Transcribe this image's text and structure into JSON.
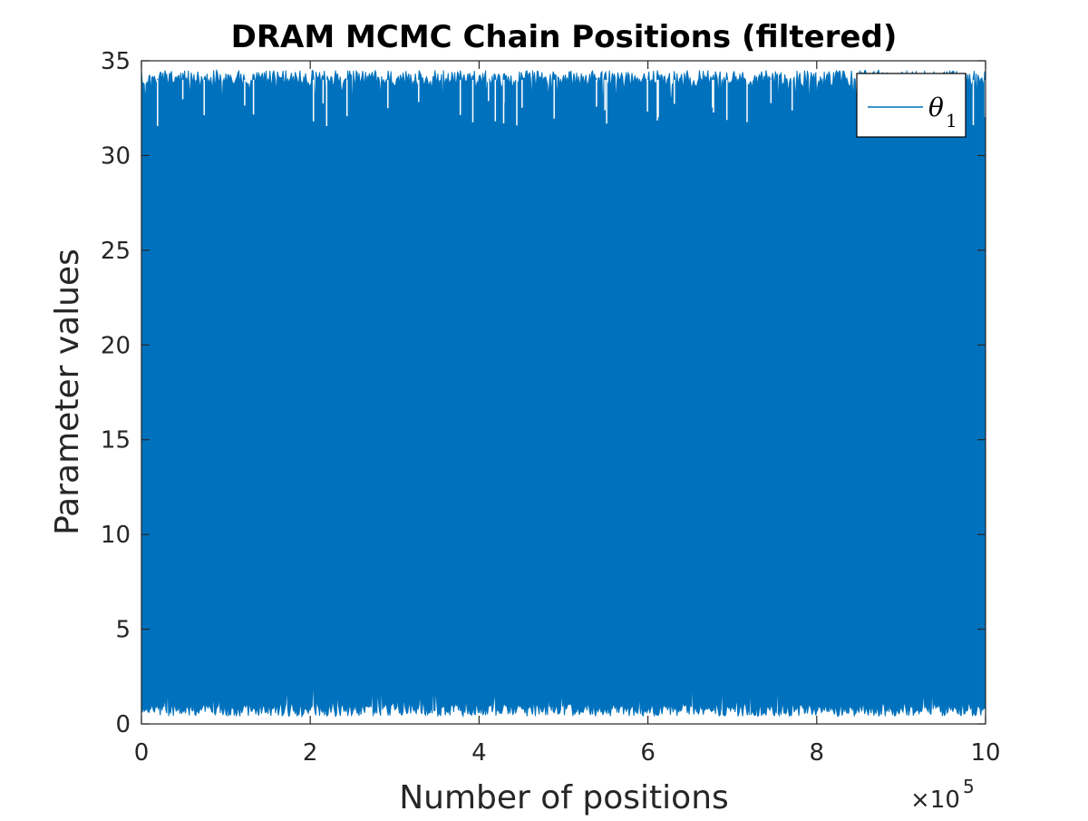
{
  "chart_data": {
    "type": "line",
    "title": "DRAM MCMC Chain Positions (filtered)",
    "xlabel": "Number of positions",
    "ylabel": "Parameter values",
    "xlim": [
      0,
      1000000
    ],
    "ylim": [
      0,
      35
    ],
    "x_ticks": [
      0,
      200000,
      400000,
      600000,
      800000,
      1000000
    ],
    "x_tick_labels": [
      "0",
      "2",
      "4",
      "6",
      "8",
      "10"
    ],
    "x_multiplier_label": "×10",
    "x_multiplier_exponent": "5",
    "y_ticks": [
      0,
      5,
      10,
      15,
      20,
      25,
      30,
      35
    ],
    "y_tick_labels": [
      "0",
      "5",
      "10",
      "15",
      "20",
      "25",
      "30",
      "35"
    ],
    "grid": false,
    "legend_position": "top-right",
    "series": [
      {
        "name": "θ1",
        "legend_symbol": "θ",
        "legend_subscript": "1",
        "color": "#0072BD",
        "value_range": [
          0.2,
          35
        ],
        "typical_upper": 34.5,
        "typical_lower": 0.4
      }
    ]
  }
}
